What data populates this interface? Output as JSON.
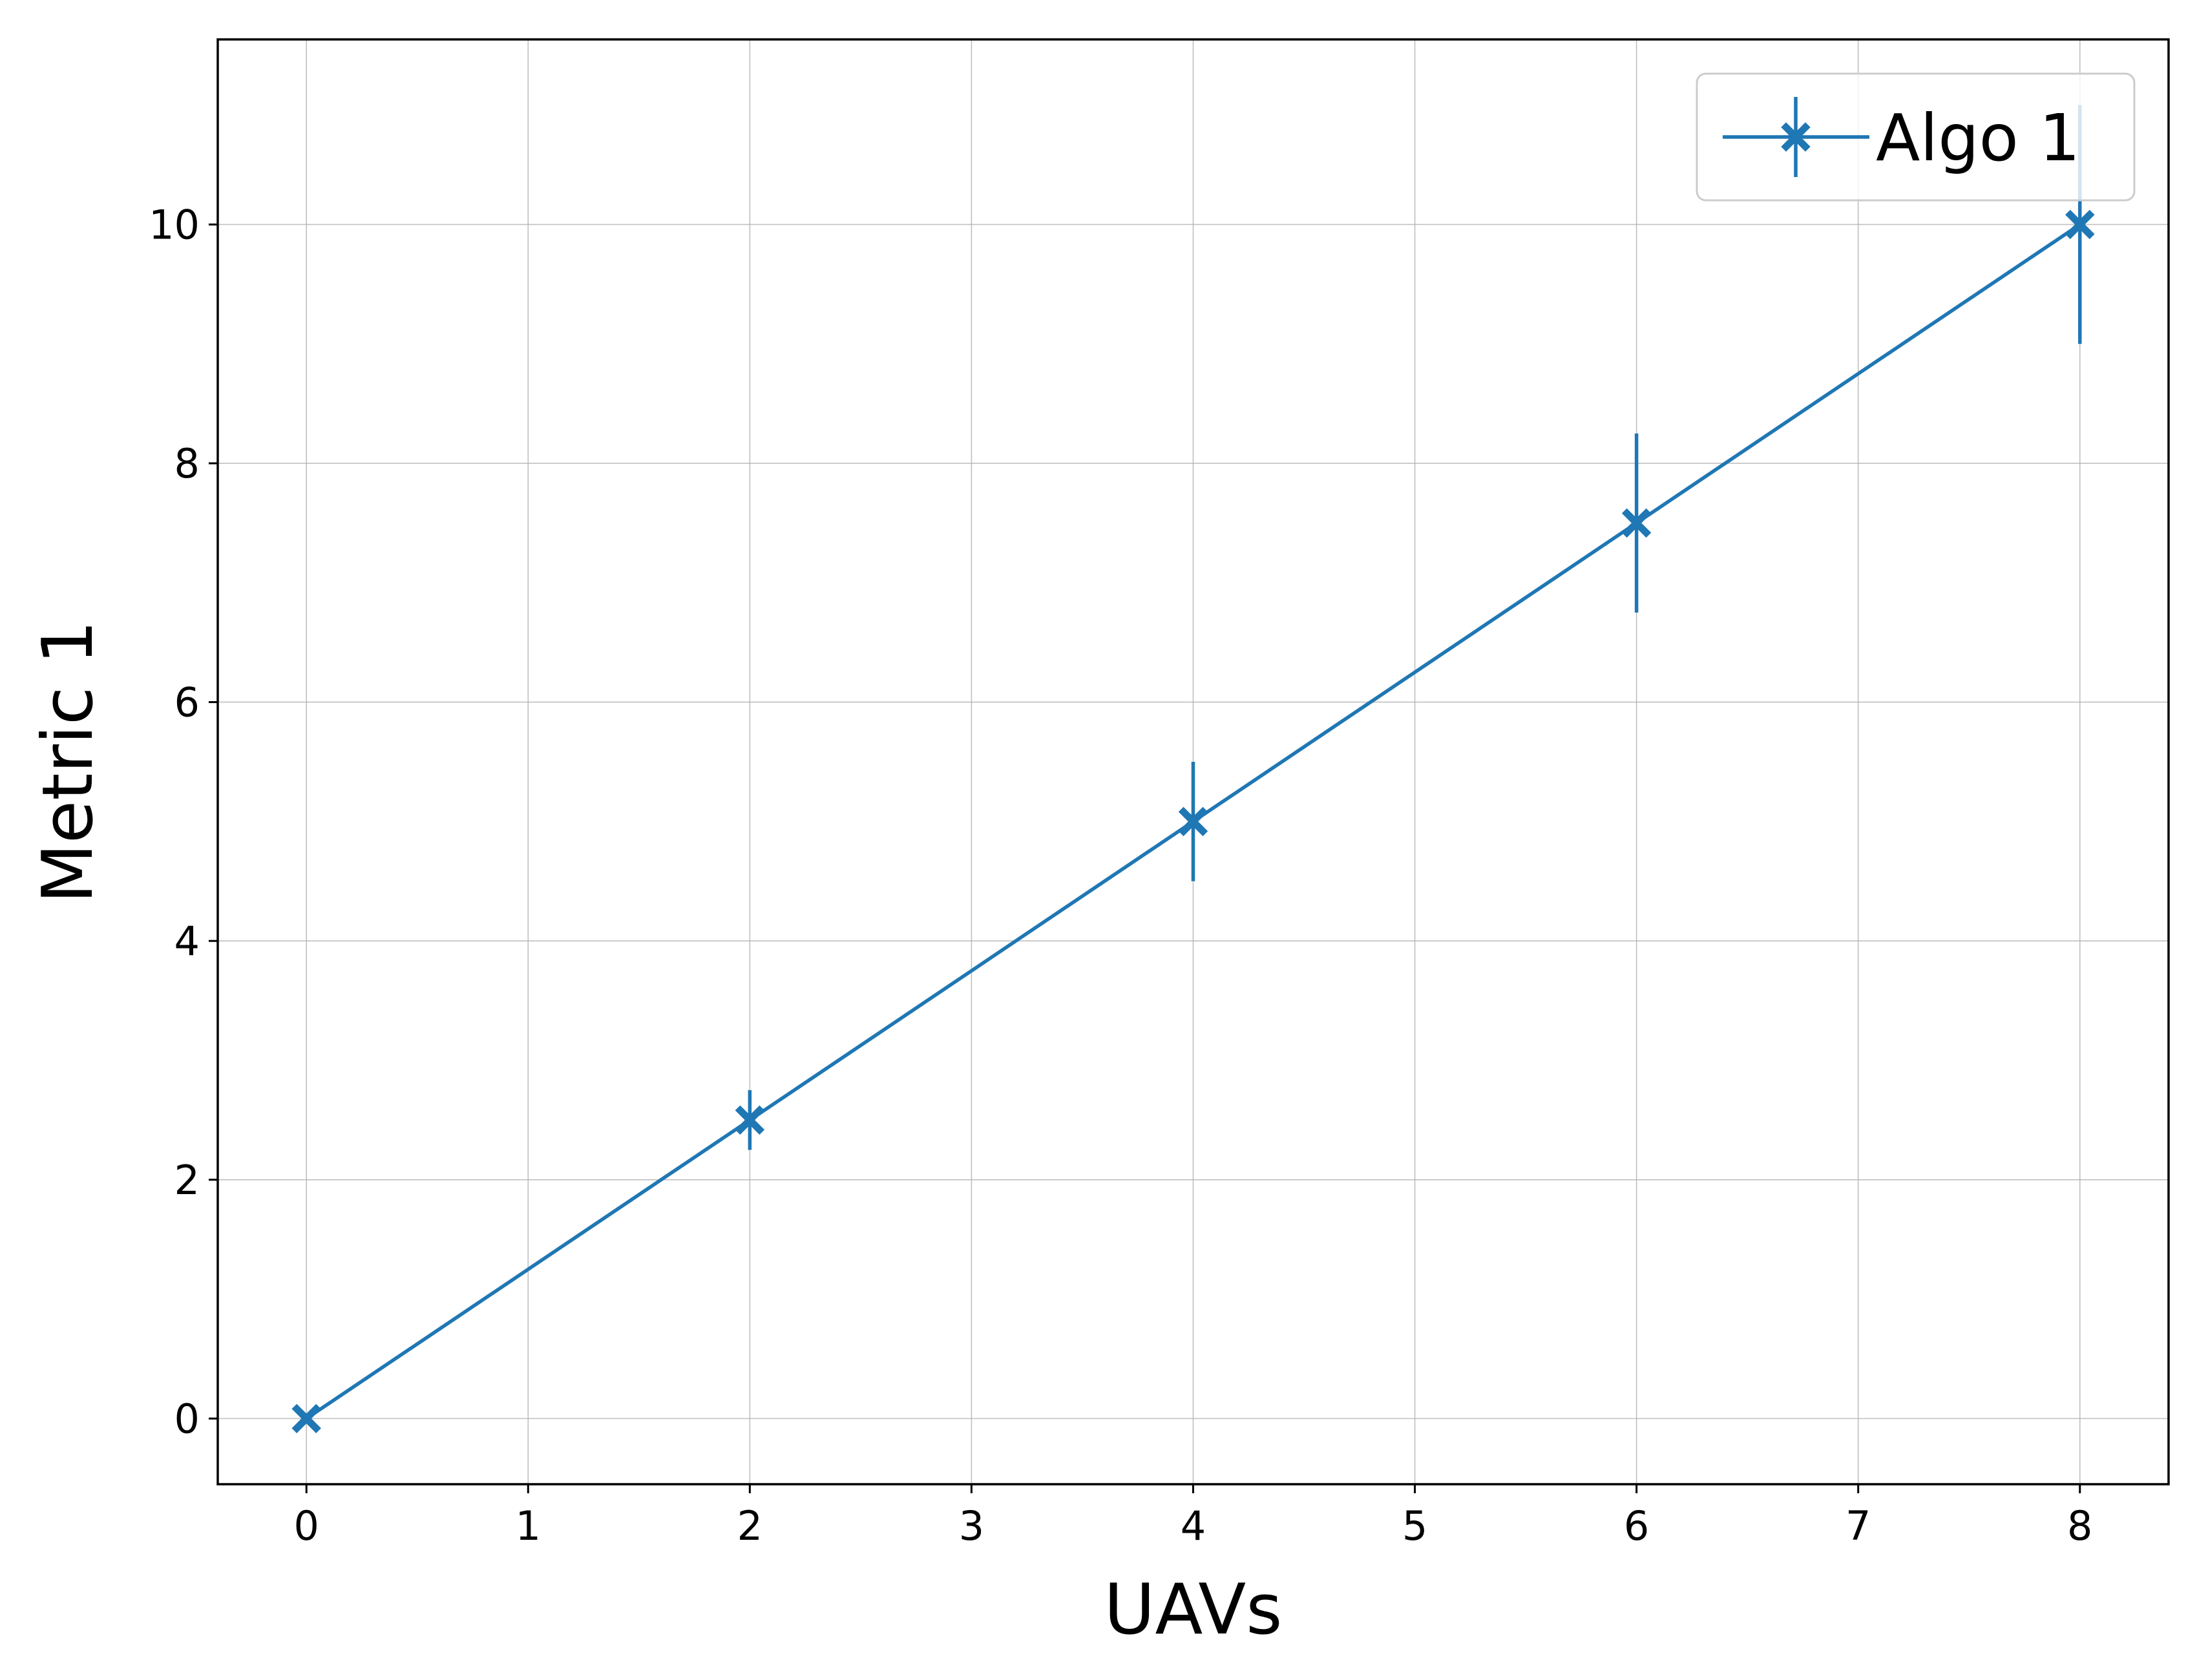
{
  "chart_data": {
    "type": "line",
    "title": "",
    "xlabel": "UAVs",
    "ylabel": "Metric 1",
    "xlim": [
      -0.4,
      8.4
    ],
    "ylim": [
      -0.55,
      11.55
    ],
    "xticks": [
      0,
      1,
      2,
      3,
      4,
      5,
      6,
      7,
      8
    ],
    "yticks": [
      0,
      2,
      4,
      6,
      8,
      10
    ],
    "grid": true,
    "legend_position": "top-right",
    "series": [
      {
        "name": "Algo 1",
        "color": "#1f77b4",
        "marker": "x-filled",
        "x": [
          0,
          2,
          4,
          6,
          8
        ],
        "y": [
          0,
          2.5,
          5,
          7.5,
          10
        ],
        "yerr": [
          0,
          0.25,
          0.5,
          0.75,
          1.0
        ]
      }
    ]
  }
}
